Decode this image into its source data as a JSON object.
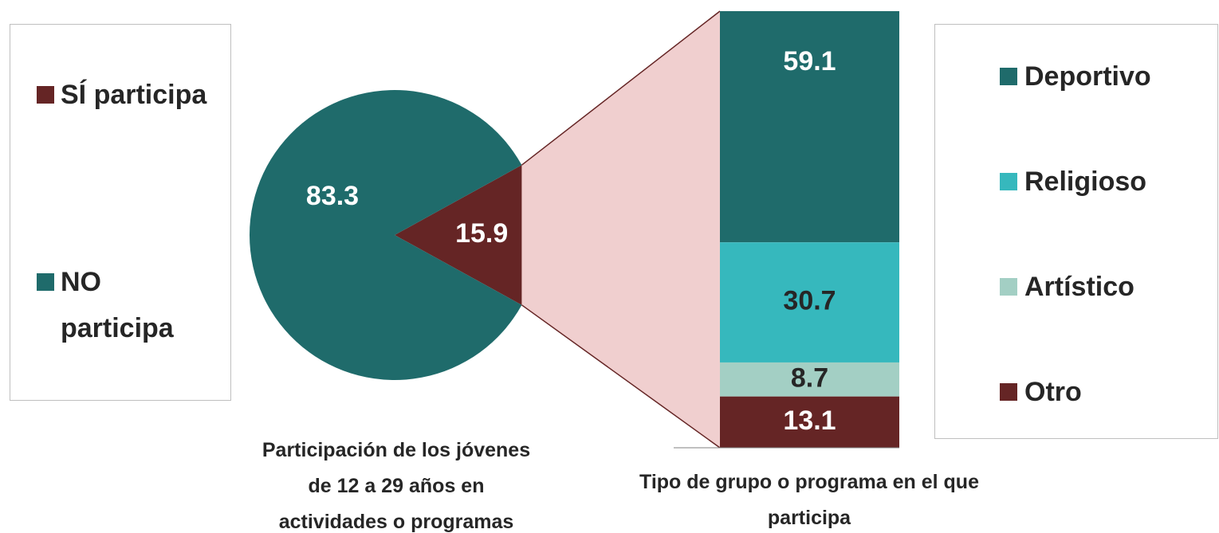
{
  "chart_data": [
    {
      "type": "pie",
      "title": "Participación de los jóvenes de 12 a 29 años en actividades o programas",
      "categories": [
        "SÍ participa",
        "NO participa"
      ],
      "values": [
        15.9,
        83.3
      ],
      "colors": [
        "#652525",
        "#1f6b6b"
      ]
    },
    {
      "type": "stacked_bar",
      "title": "Tipo de grupo o programa en el que participa",
      "categories": [
        "Deportivo",
        "Religioso",
        "Artístico",
        "Otro"
      ],
      "values": [
        59.1,
        30.7,
        8.7,
        13.1
      ],
      "colors": [
        "#1f6b6b",
        "#36b8bd",
        "#a3cfc4",
        "#652525"
      ]
    }
  ]
}
